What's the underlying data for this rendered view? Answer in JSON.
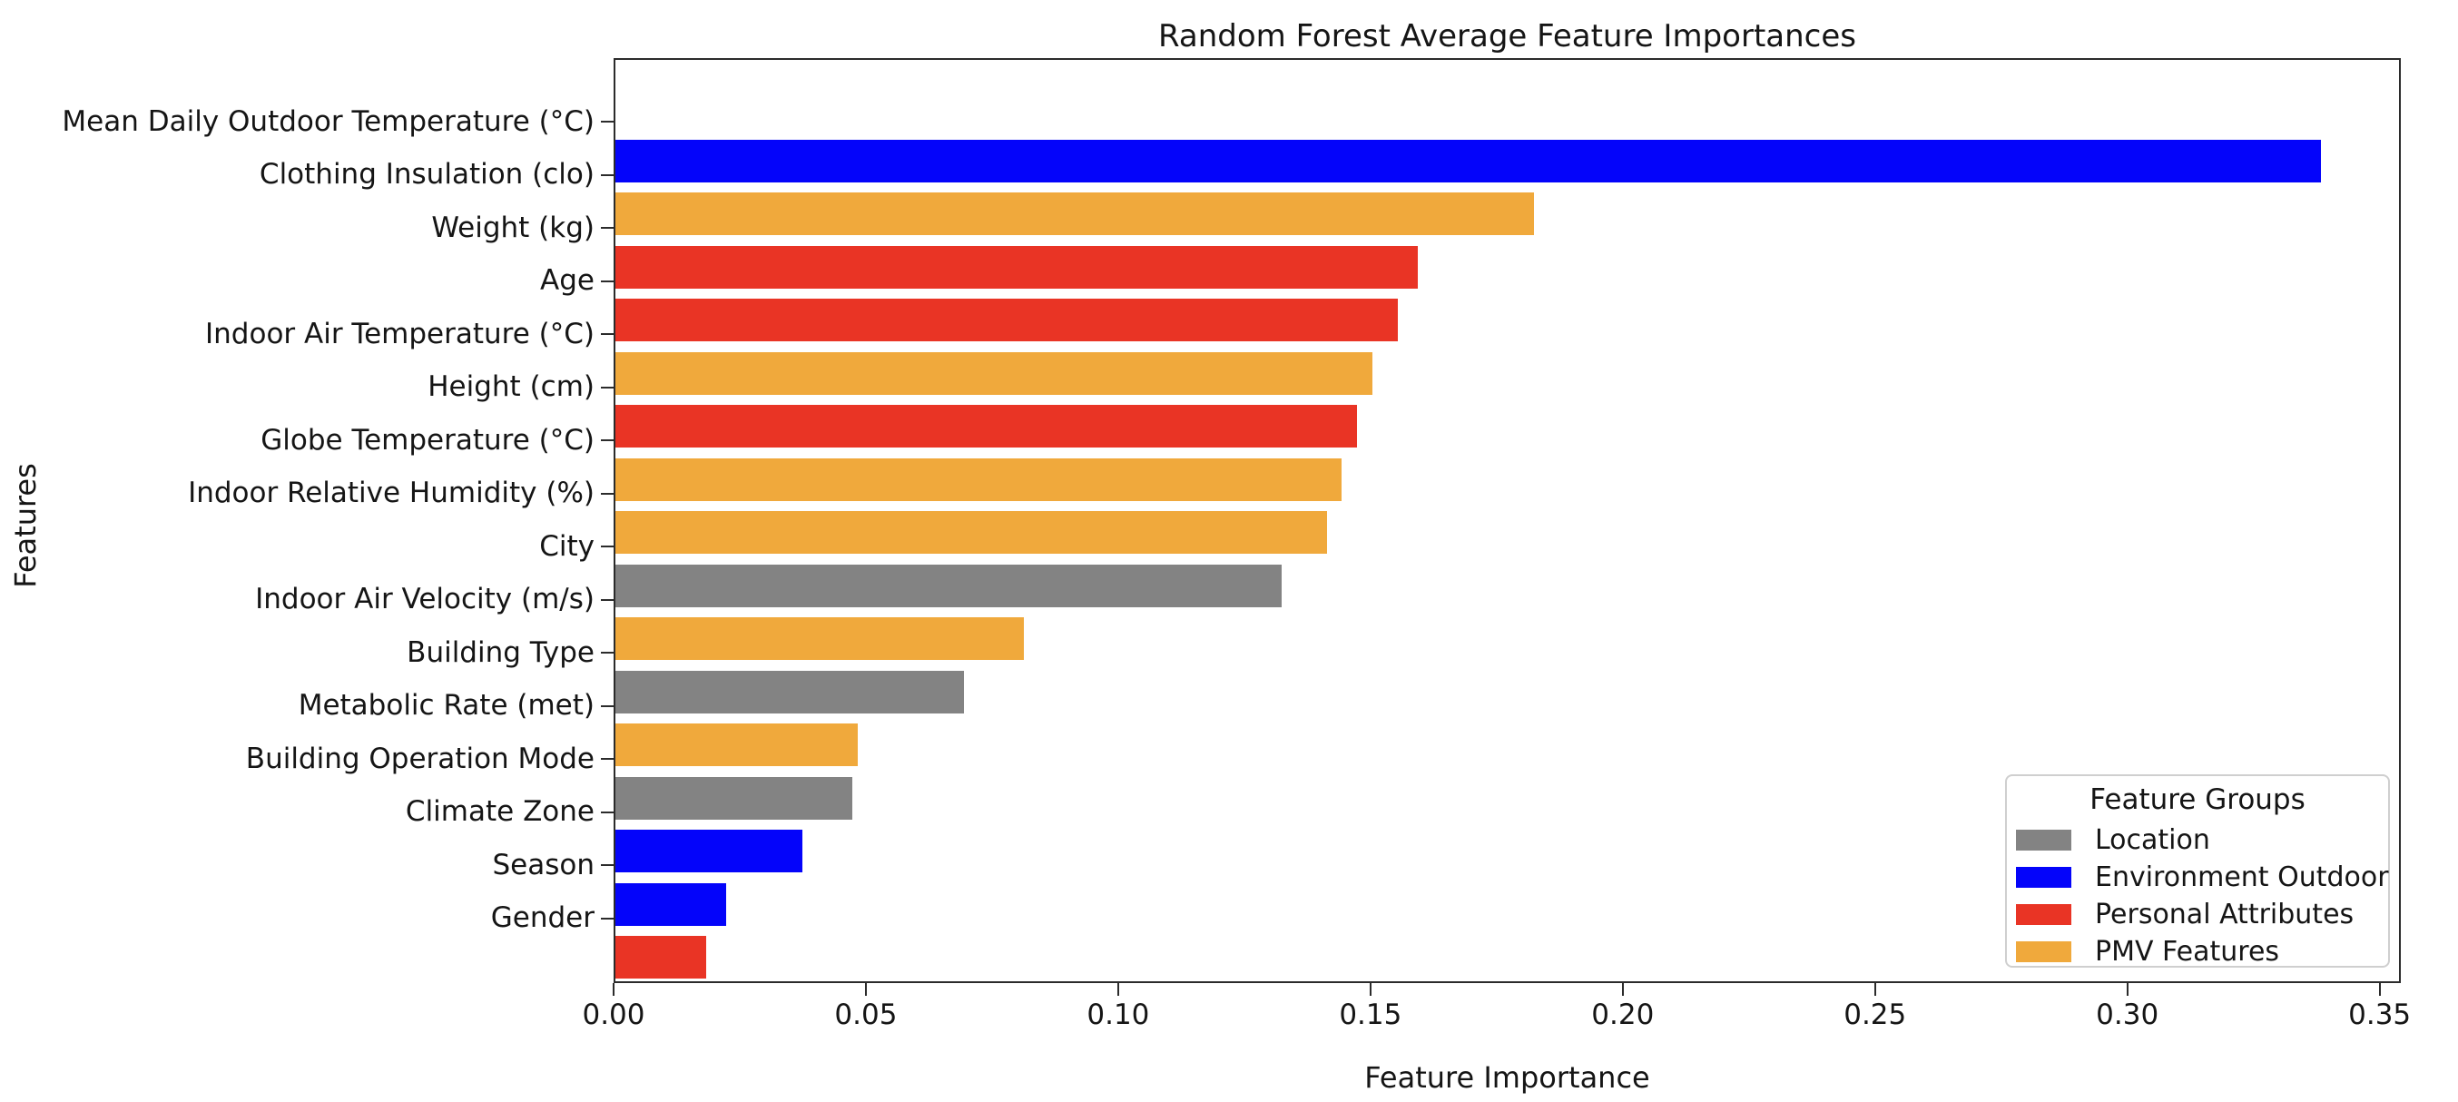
{
  "chart_data": {
    "type": "bar",
    "orientation": "horizontal",
    "title": "Random Forest Average Feature Importances",
    "xlabel": "Feature Importance",
    "ylabel": "Features",
    "xlim": [
      0,
      0.3542
    ],
    "grid": false,
    "xticks": [
      {
        "value": 0.0,
        "label": "0.00"
      },
      {
        "value": 0.05,
        "label": "0.05"
      },
      {
        "value": 0.1,
        "label": "0.10"
      },
      {
        "value": 0.15,
        "label": "0.15"
      },
      {
        "value": 0.2,
        "label": "0.20"
      },
      {
        "value": 0.25,
        "label": "0.25"
      },
      {
        "value": 0.3,
        "label": "0.30"
      },
      {
        "value": 0.35,
        "label": "0.35"
      }
    ],
    "group_colors": {
      "Location": "#838383",
      "Environment Outdoor": "#0404fa",
      "Personal Attributes": "#e93425",
      "PMV Features": "#f0a93c"
    },
    "bars": [
      {
        "category": "Mean Daily Outdoor Temperature (°C)",
        "value": 0.338,
        "group": "Environment Outdoor"
      },
      {
        "category": "Clothing Insulation (clo)",
        "value": 0.182,
        "group": "PMV Features"
      },
      {
        "category": "Weight (kg)",
        "value": 0.159,
        "group": "Personal Attributes"
      },
      {
        "category": "Age",
        "value": 0.155,
        "group": "Personal Attributes"
      },
      {
        "category": "Indoor Air Temperature (°C)",
        "value": 0.15,
        "group": "PMV Features"
      },
      {
        "category": "Height (cm)",
        "value": 0.147,
        "group": "Personal Attributes"
      },
      {
        "category": "Globe Temperature (°C)",
        "value": 0.144,
        "group": "PMV Features"
      },
      {
        "category": "Indoor Relative Humidity (%)",
        "value": 0.141,
        "group": "PMV Features"
      },
      {
        "category": "City",
        "value": 0.132,
        "group": "Location"
      },
      {
        "category": "Indoor Air Velocity (m/s)",
        "value": 0.081,
        "group": "PMV Features"
      },
      {
        "category": "Building Type",
        "value": 0.069,
        "group": "Location"
      },
      {
        "category": "Metabolic Rate (met)",
        "value": 0.048,
        "group": "PMV Features"
      },
      {
        "category": "Building Operation Mode",
        "value": 0.047,
        "group": "Location"
      },
      {
        "category": "Climate Zone",
        "value": 0.037,
        "group": "Environment Outdoor"
      },
      {
        "category": "Season",
        "value": 0.022,
        "group": "Environment Outdoor"
      },
      {
        "category": "Gender",
        "value": 0.018,
        "group": "Personal Attributes"
      }
    ],
    "legend": {
      "title": "Feature Groups",
      "position": "lower right",
      "items": [
        {
          "label": "Location",
          "color": "#838383"
        },
        {
          "label": "Environment Outdoor",
          "color": "#0404fa"
        },
        {
          "label": "Personal Attributes",
          "color": "#e93425"
        },
        {
          "label": "PMV Features",
          "color": "#f0a93c"
        }
      ]
    }
  }
}
